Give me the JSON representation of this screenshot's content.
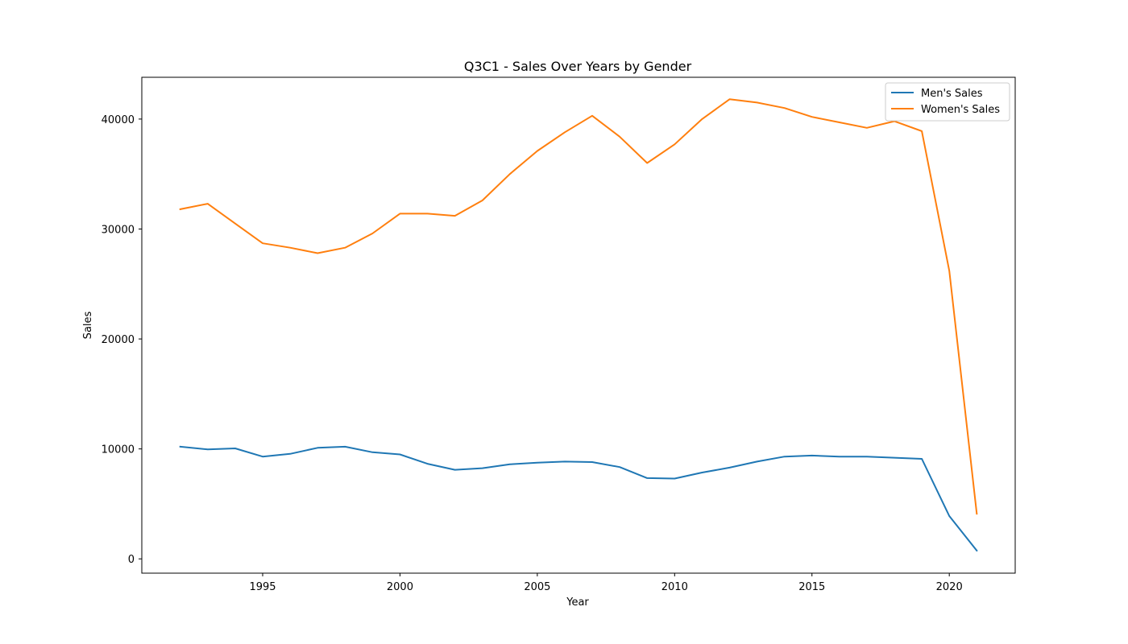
{
  "chart_data": {
    "type": "line",
    "title": "Q3C1 - Sales Over Years by Gender",
    "xlabel": "Year",
    "ylabel": "Sales",
    "xlim": [
      1990.6,
      2022.4
    ],
    "ylim": [
      -1300,
      43800
    ],
    "x_ticks": [
      1995,
      2000,
      2005,
      2010,
      2015,
      2020
    ],
    "y_ticks": [
      0,
      10000,
      20000,
      30000,
      40000
    ],
    "grid": false,
    "legend_position": "top-right",
    "x": [
      1992,
      1993,
      1994,
      1995,
      1996,
      1997,
      1998,
      1999,
      2000,
      2001,
      2002,
      2003,
      2004,
      2005,
      2006,
      2007,
      2008,
      2009,
      2010,
      2011,
      2012,
      2013,
      2014,
      2015,
      2016,
      2017,
      2018,
      2019,
      2020,
      2021
    ],
    "series": [
      {
        "name": "Men's Sales",
        "color": "#1f77b4",
        "values": [
          10200,
          9950,
          10050,
          9300,
          9550,
          10100,
          10200,
          9700,
          9500,
          8650,
          8100,
          8250,
          8600,
          8750,
          8850,
          8800,
          8350,
          7350,
          7300,
          7850,
          8300,
          8850,
          9300,
          9400,
          9300,
          9300,
          9200,
          9100,
          3900,
          750
        ]
      },
      {
        "name": "Women's Sales",
        "color": "#ff7f0e",
        "values": [
          31800,
          32300,
          30500,
          28700,
          28300,
          27800,
          28300,
          29600,
          31400,
          31400,
          31200,
          32600,
          35000,
          37100,
          38800,
          40300,
          38400,
          36000,
          37700,
          40000,
          41800,
          41500,
          41000,
          40200,
          39700,
          39200,
          39800,
          38900,
          26200,
          4100
        ]
      }
    ]
  }
}
